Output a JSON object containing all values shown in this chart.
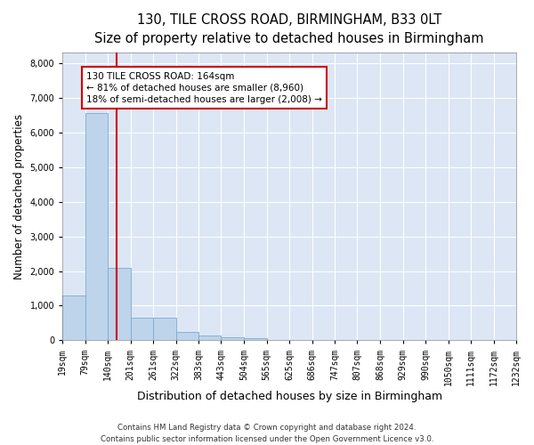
{
  "title_line1": "130, TILE CROSS ROAD, BIRMINGHAM, B33 0LT",
  "title_line2": "Size of property relative to detached houses in Birmingham",
  "xlabel": "Distribution of detached houses by size in Birmingham",
  "ylabel": "Number of detached properties",
  "bin_edges": [
    19,
    79,
    140,
    201,
    261,
    322,
    383,
    443,
    504,
    565,
    625,
    686,
    747,
    807,
    868,
    929,
    990,
    1050,
    1111,
    1172,
    1232
  ],
  "bin_counts": [
    1300,
    6550,
    2080,
    650,
    640,
    250,
    130,
    100,
    65,
    10,
    8,
    5,
    3,
    2,
    1,
    1,
    1,
    1,
    1,
    1
  ],
  "bar_color": "#bed4eb",
  "bar_edge_color": "#7aaad4",
  "property_size": 164,
  "vline_color": "#cc0000",
  "annotation_text": "130 TILE CROSS ROAD: 164sqm\n← 81% of detached houses are smaller (8,960)\n18% of semi-detached houses are larger (2,008) →",
  "annotation_box_color": "#ffffff",
  "annotation_box_edge_color": "#cc0000",
  "ylim": [
    0,
    8300
  ],
  "yticks": [
    0,
    1000,
    2000,
    3000,
    4000,
    5000,
    6000,
    7000,
    8000
  ],
  "footer_line1": "Contains HM Land Registry data © Crown copyright and database right 2024.",
  "footer_line2": "Contains public sector information licensed under the Open Government Licence v3.0.",
  "fig_bg_color": "#ffffff",
  "plot_bg_color": "#dce6f5",
  "title_fontsize": 10.5,
  "axis_label_fontsize": 8.5,
  "tick_fontsize": 7,
  "annotation_fontsize": 7.5,
  "footer_fontsize": 6.2
}
